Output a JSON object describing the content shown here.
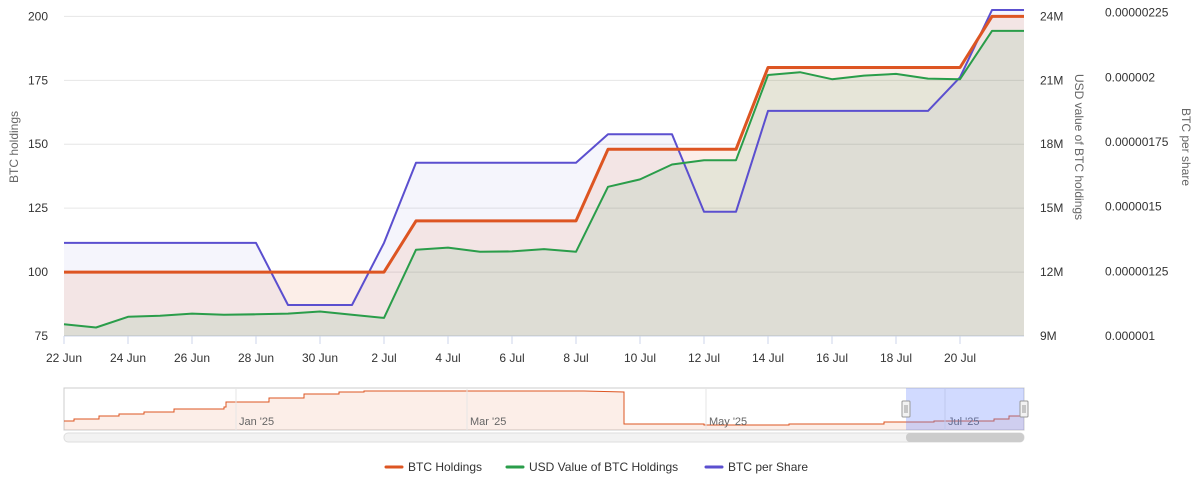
{
  "chart_data": {
    "type": "line",
    "x": [
      "22 Jun",
      "23 Jun",
      "24 Jun",
      "25 Jun",
      "26 Jun",
      "27 Jun",
      "28 Jun",
      "29 Jun",
      "30 Jun",
      "1 Jul",
      "2 Jul",
      "3 Jul",
      "4 Jul",
      "5 Jul",
      "6 Jul",
      "7 Jul",
      "8 Jul",
      "9 Jul",
      "10 Jul",
      "11 Jul",
      "12 Jul",
      "13 Jul",
      "14 Jul",
      "15 Jul",
      "16 Jul",
      "17 Jul",
      "18 Jul",
      "19 Jul",
      "20 Jul",
      "21 Jul",
      "22 Jul"
    ],
    "x_tick_labels": [
      "22 Jun",
      "24 Jun",
      "26 Jun",
      "28 Jun",
      "30 Jun",
      "2 Jul",
      "4 Jul",
      "6 Jul",
      "8 Jul",
      "10 Jul",
      "12 Jul",
      "14 Jul",
      "16 Jul",
      "18 Jul",
      "20 Jul"
    ],
    "series": [
      {
        "name": "BTC Holdings",
        "axis": "left",
        "color": "#dd5522",
        "values": [
          100,
          100,
          100,
          100,
          100,
          100,
          100,
          100,
          100,
          100,
          100,
          120,
          120,
          120,
          120,
          120,
          120,
          148,
          148,
          148,
          148,
          148,
          180,
          180,
          180,
          180,
          180,
          180,
          180,
          200,
          200
        ]
      },
      {
        "name": "USD Value of BTC Holdings",
        "axis": "right1",
        "color": "#2a9d4a",
        "values": [
          9.55,
          9.4,
          9.9,
          9.95,
          10.05,
          10.0,
          10.02,
          10.05,
          10.15,
          10.0,
          9.85,
          13.05,
          13.15,
          12.95,
          12.97,
          13.08,
          12.95,
          16.0,
          16.35,
          17.05,
          17.25,
          17.25,
          21.25,
          21.38,
          21.05,
          21.22,
          21.3,
          21.08,
          21.05,
          23.32,
          23.32
        ]
      },
      {
        "name": "BTC per Share",
        "axis": "right2",
        "color": "#5b4fcf",
        "values": [
          1.36e-06,
          1.36e-06,
          1.36e-06,
          1.36e-06,
          1.36e-06,
          1.36e-06,
          1.36e-06,
          1.12e-06,
          1.12e-06,
          1.12e-06,
          1.36e-06,
          1.67e-06,
          1.67e-06,
          1.67e-06,
          1.67e-06,
          1.67e-06,
          1.67e-06,
          1.78e-06,
          1.78e-06,
          1.78e-06,
          1.48e-06,
          1.48e-06,
          1.87e-06,
          1.87e-06,
          1.87e-06,
          1.87e-06,
          1.87e-06,
          1.87e-06,
          2e-06,
          2.26e-06,
          2.26e-06
        ]
      }
    ],
    "y_axes": [
      {
        "id": "left",
        "title": "BTC holdings",
        "ylim": [
          75,
          202.5
        ],
        "ticks": [
          "75",
          "100",
          "125",
          "150",
          "175",
          "200"
        ]
      },
      {
        "id": "right1",
        "title": "USD value of BTC holdings",
        "ylim": [
          9,
          24.3
        ],
        "ticks": [
          "9M",
          "12M",
          "15M",
          "18M",
          "21M",
          "24M"
        ]
      },
      {
        "id": "right2",
        "title": "BTC per share",
        "ylim": [
          1e-06,
          2.26e-06
        ],
        "ticks": [
          "0.000001",
          "0.00000125",
          "0.0000015",
          "0.00000175",
          "0.000002",
          "0.00000225"
        ]
      }
    ],
    "grid": true,
    "legend_position": "bottom-center",
    "navigator": {
      "labels": [
        "Jan '25",
        "Mar '25",
        "May '25",
        "Jul '25"
      ],
      "series_name": "BTC Holdings"
    }
  },
  "legend": {
    "items": [
      {
        "label": "BTC Holdings",
        "color": "#dd5522"
      },
      {
        "label": "USD Value of BTC Holdings",
        "color": "#2a9d4a"
      },
      {
        "label": "BTC per Share",
        "color": "#5b4fcf"
      }
    ]
  }
}
